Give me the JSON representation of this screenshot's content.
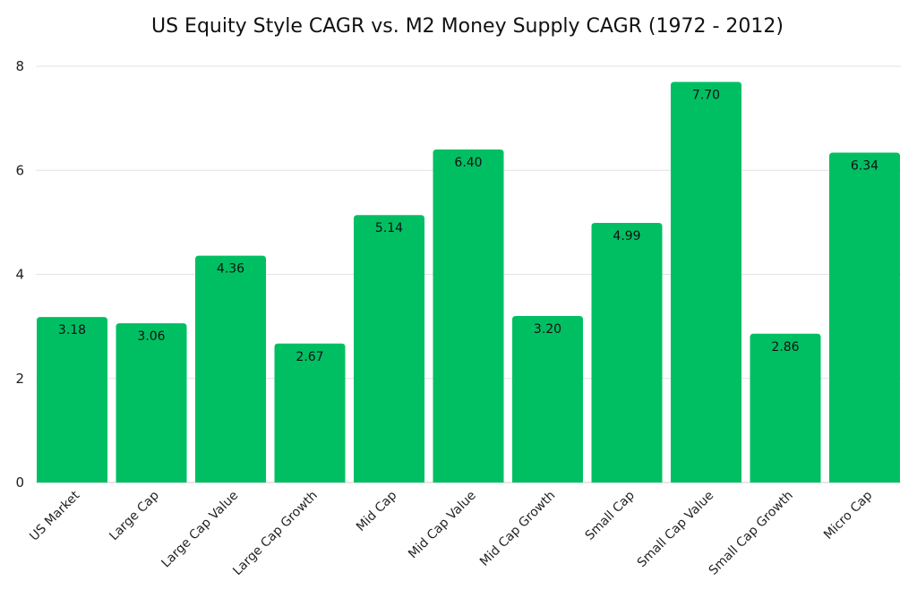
{
  "chart_data": {
    "type": "bar",
    "title": "US Equity Style CAGR vs. M2 Money Supply CAGR (1972 - 2012)",
    "xlabel": "",
    "ylabel": "",
    "ylim": [
      0,
      8
    ],
    "yticks": [
      0,
      2,
      4,
      6,
      8
    ],
    "grid": true,
    "legend": "none",
    "bar_color": "#00BF63",
    "categories": [
      "US Market",
      "Large Cap",
      "Large Cap Value",
      "Large Cap Growth",
      "Mid Cap",
      "Mid Cap Value",
      "Mid Cap Growth",
      "Small Cap",
      "Small Cap Value",
      "Small Cap Growth",
      "Micro Cap"
    ],
    "values": [
      3.18,
      3.06,
      4.36,
      2.67,
      5.14,
      6.4,
      3.2,
      4.99,
      7.7,
      2.86,
      6.34
    ],
    "data_labels": [
      "3.18",
      "3.06",
      "4.36",
      "2.67",
      "5.14",
      "6.40",
      "3.20",
      "4.99",
      "7.70",
      "2.86",
      "6.34"
    ]
  }
}
